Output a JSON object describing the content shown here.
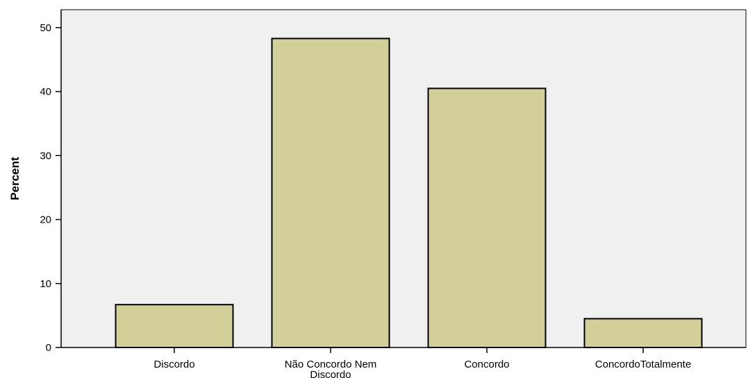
{
  "chart_data": {
    "type": "bar",
    "title": "",
    "xlabel": "",
    "ylabel": "Percent",
    "categories": [
      "Discordo",
      "Não Concordo Nem Discordo",
      "Concordo",
      "ConcordoTotalmente"
    ],
    "category_label_lines": [
      [
        "Discordo"
      ],
      [
        "Não Concordo Nem",
        "Discordo"
      ],
      [
        "Concordo"
      ],
      [
        "ConcordoTotalmente"
      ]
    ],
    "values": [
      6.7,
      48.3,
      40.5,
      4.5
    ],
    "ylim": [
      0,
      52.8
    ],
    "yticks": [
      0,
      10,
      20,
      30,
      40,
      50
    ],
    "grid": false,
    "legend": "none",
    "colors": {
      "bar_fill": "#d3cf98",
      "bar_stroke": "#000000",
      "plot_background": "#f0f0f0",
      "axis": "#000000"
    }
  }
}
